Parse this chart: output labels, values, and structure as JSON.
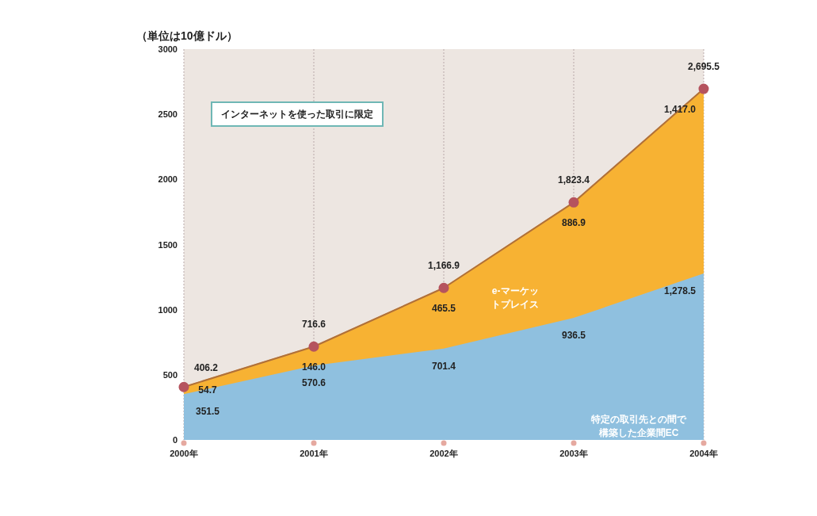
{
  "chart_data": {
    "type": "area",
    "stacked": true,
    "ylabel": "（単位は10億ドル）",
    "categories": [
      "2000年",
      "2001年",
      "2002年",
      "2003年",
      "2004年"
    ],
    "series": [
      {
        "name": "特定の取引先との間で構築した企業間EC",
        "color": "#8fc0df",
        "values": [
          351.5,
          570.6,
          701.4,
          936.5,
          1278.5
        ],
        "value_labels": [
          "351.5",
          "570.6",
          "701.4",
          "936.5",
          "1,278.5"
        ]
      },
      {
        "name": "e-マーケットプレイス",
        "color": "#f7b233",
        "marker": "circle",
        "values": [
          54.7,
          146.0,
          465.5,
          886.9,
          1417.0
        ],
        "value_labels": [
          "54.7",
          "146.0",
          "465.5",
          "886.9",
          "1,417.0"
        ]
      }
    ],
    "totals": [
      "406.2",
      "716.6",
      "1,166.9",
      "1,823.4",
      "2,695.5"
    ],
    "ylim": [
      0,
      3000
    ],
    "yticks": [
      0,
      500,
      1000,
      1500,
      2000,
      2500,
      3000
    ],
    "grid": "x",
    "annotations": [
      "インターネットを使った取引に限定"
    ]
  }
}
